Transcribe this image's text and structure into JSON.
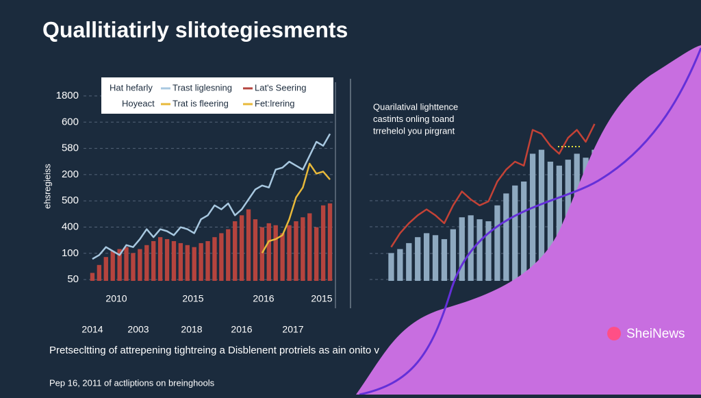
{
  "title": "Quallitiatirly slitotegiesments",
  "caption": "Pretsecltting of attrepening tightreing a Disblenent protriels as ain onito v",
  "footer": "Pep 16, 2011 of actliptions on breinghools",
  "brand": "SheiNews",
  "chart_data": [
    {
      "type": "bar-line",
      "y_label": "ehsregieiss",
      "y_labels": [
        "1800",
        "600",
        "580",
        "200",
        "500",
        "400",
        "100",
        "50"
      ],
      "x_labels": [
        "2010",
        "2015",
        "2016",
        "2015"
      ],
      "x_labels_2": [
        "2014",
        "2003",
        "2018",
        "2016",
        "2017"
      ],
      "legend_extra": [
        "Hat hefarly",
        "Hoyeact",
        "Fet:lrering"
      ],
      "ylim": [
        0,
        100
      ],
      "series": [
        {
          "name": "Lat's Seering",
          "kind": "bar",
          "color": "#b5443e",
          "values": [
            4,
            8,
            12,
            15,
            16,
            17,
            14,
            16,
            18,
            20,
            22,
            21,
            20,
            19,
            18,
            17,
            19,
            20,
            22,
            24,
            26,
            30,
            33,
            36,
            31,
            27,
            29,
            28,
            24,
            28,
            30,
            32,
            34,
            27,
            38,
            39
          ]
        },
        {
          "name": "Trast liglesning",
          "kind": "line",
          "color": "#a8c8e0",
          "values": [
            11,
            13,
            17,
            15,
            13,
            18,
            17,
            21,
            26,
            22,
            26,
            25,
            23,
            27,
            26,
            24,
            31,
            33,
            38,
            36,
            39,
            33,
            36,
            41,
            46,
            48,
            47,
            56,
            57,
            60,
            58,
            56,
            63,
            70,
            68,
            74
          ]
        },
        {
          "name": "Trat is fleering",
          "kind": "line",
          "color": "#e8b93a",
          "values": [
            null,
            null,
            null,
            null,
            null,
            null,
            null,
            null,
            null,
            null,
            null,
            null,
            null,
            null,
            null,
            null,
            null,
            null,
            null,
            null,
            null,
            null,
            null,
            null,
            null,
            14,
            20,
            21,
            23,
            31,
            42,
            47,
            59,
            54,
            55,
            51
          ]
        }
      ]
    },
    {
      "type": "bar-line",
      "annotation": [
        "Quarilatival lighttence",
        "castints onling toand",
        "trrehelol you pirgrant"
      ],
      "ylim": [
        0,
        100
      ],
      "series": [
        {
          "kind": "bar",
          "color": "#8ea9c0",
          "values": [
            14,
            16,
            19,
            22,
            24,
            23,
            21,
            26,
            32,
            33,
            31,
            30,
            38,
            44,
            48,
            50,
            64,
            66,
            60,
            58,
            61,
            64,
            62,
            66
          ]
        },
        {
          "kind": "line",
          "color": "#c44236",
          "values": [
            17,
            24,
            29,
            33,
            36,
            33,
            29,
            38,
            45,
            41,
            38,
            40,
            50,
            56,
            60,
            58,
            76,
            74,
            68,
            64,
            72,
            76,
            70,
            79
          ]
        }
      ]
    }
  ]
}
